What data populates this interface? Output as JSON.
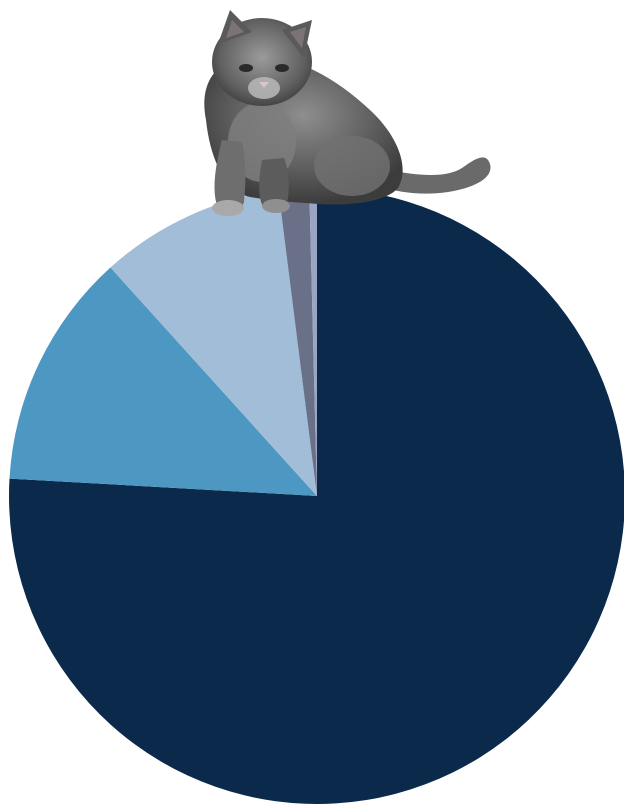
{
  "chart_data": {
    "type": "pie",
    "title": "",
    "start_angle_deg": 0,
    "direction": "clockwise",
    "slices": [
      {
        "name": "",
        "value": 75.9,
        "color": "#0b2a4b"
      },
      {
        "name": "",
        "value": 12.4,
        "color": "#4d97c3"
      },
      {
        "name": "",
        "value": 9.7,
        "color": "#a1bdd8"
      },
      {
        "name": "",
        "value": 1.6,
        "color": "#6b7089"
      },
      {
        "name": "",
        "value": 0.4,
        "color": "#9aa5c4"
      }
    ],
    "legend": "none",
    "decoration": "grey-cat-photo-sitting-on-top-of-pie"
  }
}
